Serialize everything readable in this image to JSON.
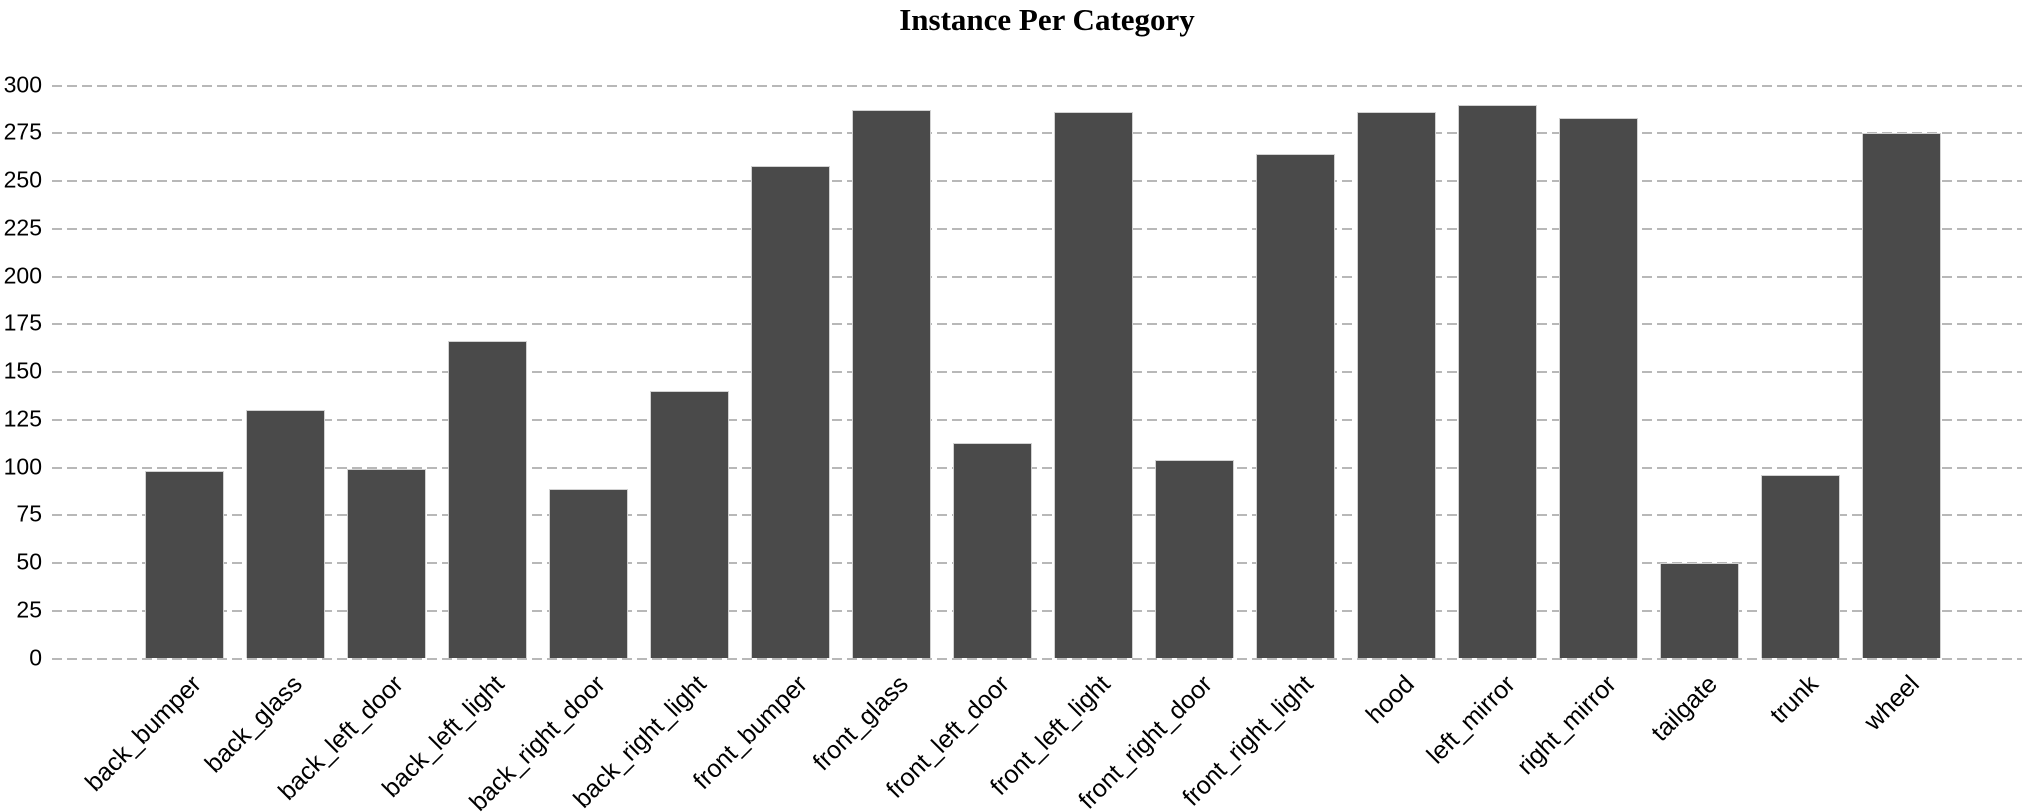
{
  "title": "Instance Per Category",
  "chart_data": {
    "type": "bar",
    "title": "Instance Per Category",
    "categories": [
      "back_bumper",
      "back_glass",
      "back_left_door",
      "back_left_light",
      "back_right_door",
      "back_right_light",
      "front_bumper",
      "front_glass",
      "front_left_door",
      "front_left_light",
      "front_right_door",
      "front_right_light",
      "hood",
      "left_mirror",
      "right_mirror",
      "tailgate",
      "trunk",
      "wheel"
    ],
    "values": [
      98,
      130,
      99,
      166,
      89,
      140,
      258,
      287,
      113,
      286,
      104,
      264,
      286,
      290,
      283,
      50,
      96,
      275
    ],
    "xlabel": "",
    "ylabel": "",
    "ylim": [
      0,
      300
    ],
    "ytick_step": 25,
    "yticks": [
      0,
      25,
      50,
      75,
      100,
      125,
      150,
      175,
      200,
      225,
      250,
      275,
      300
    ],
    "grid": "horizontal-dashed",
    "legend": "none",
    "x_label_rotation_deg": 45,
    "bar_color": "#4a4a4a",
    "bar_edge_color": "#d2d2d2",
    "grid_color": "#b8b8b8",
    "text_color": "#000000",
    "background_color": "#ffffff"
  }
}
